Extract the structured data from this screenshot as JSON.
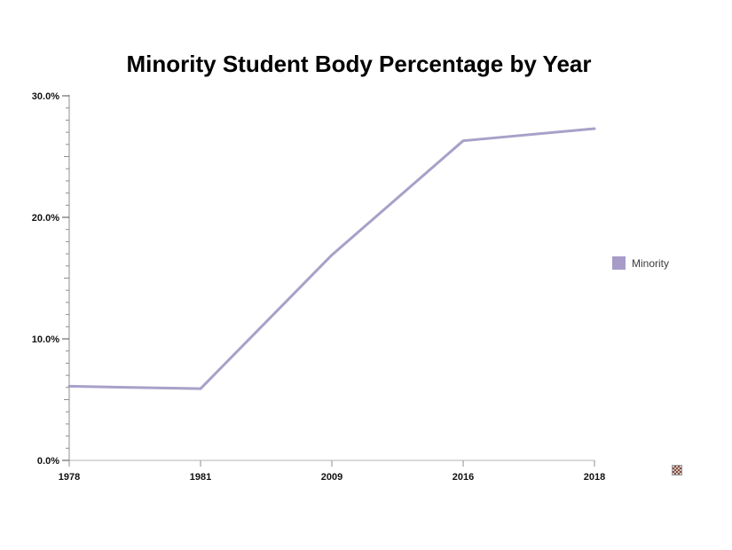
{
  "title": "Minority Student Body Percentage by Year",
  "legend": {
    "position": "right",
    "items": [
      {
        "label": "Minority",
        "color": "#a79cc8"
      }
    ]
  },
  "icons": {
    "broken_image": "▦"
  },
  "colors": {
    "series_line": "#a9a0c9",
    "legend_swatch": "#a79cc8",
    "axis": "#8f8f8f",
    "baseline": "#b6b6b6",
    "major_tick": "#4d4d4d",
    "label_text": "#111111",
    "title_text": "#000000"
  },
  "chart_data": {
    "type": "line",
    "title": "Minority Student Body Percentage by Year",
    "categories": [
      "1978",
      "1981",
      "2009",
      "2016",
      "2018"
    ],
    "series": [
      {
        "name": "Minority",
        "color": "#a9a0c9",
        "values": [
          6.1,
          5.9,
          16.9,
          26.3,
          27.3
        ]
      }
    ],
    "xlabel": "",
    "ylabel": "",
    "ylim": [
      0,
      30
    ],
    "y_ticks": [
      {
        "value": 0,
        "label": "0.0%"
      },
      {
        "value": 10,
        "label": "10.0%"
      },
      {
        "value": 20,
        "label": "20.0%"
      },
      {
        "value": 30,
        "label": "30.0%"
      }
    ],
    "y_minor_tick_step": 1,
    "grid": false,
    "legend_position": "right"
  }
}
